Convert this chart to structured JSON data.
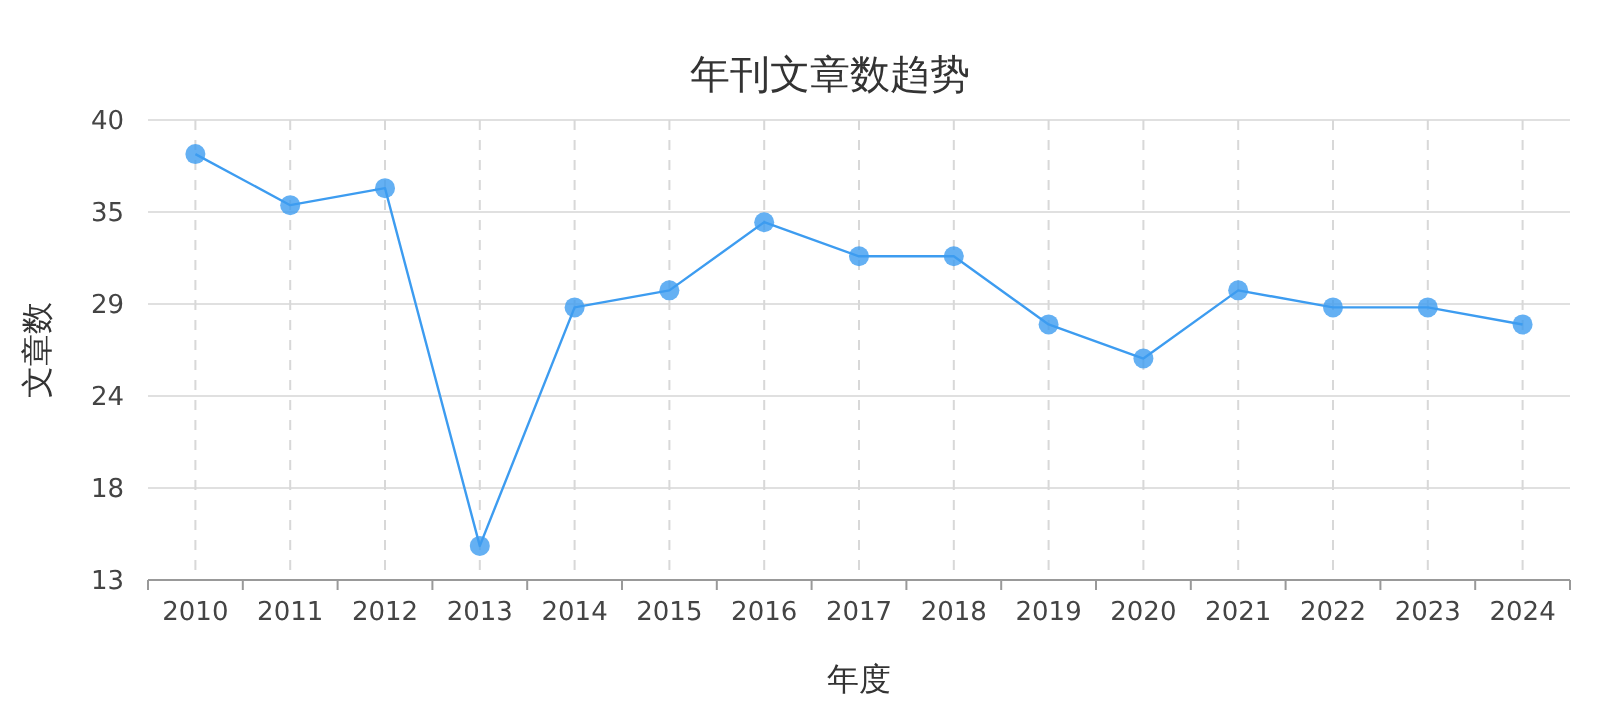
{
  "chart_data": {
    "type": "line",
    "title": "年刊文章数趋势",
    "xlabel": "年度",
    "ylabel": "文章数",
    "categories": [
      "2010",
      "2011",
      "2012",
      "2013",
      "2014",
      "2015",
      "2016",
      "2017",
      "2018",
      "2019",
      "2020",
      "2021",
      "2022",
      "2023",
      "2024"
    ],
    "series": [
      {
        "color": "#3d9cf0",
        "values": [
          38,
          35,
          36,
          15,
          29,
          30,
          34,
          32,
          32,
          28,
          26,
          30,
          29,
          29,
          28
        ]
      }
    ],
    "ylim": [
      13,
      40
    ],
    "yticks": [
      13,
      {
        "value": 18.4,
        "label": "18"
      },
      {
        "value": 23.8,
        "label": "24"
      },
      {
        "value": 29.2,
        "label": "29"
      },
      {
        "value": 34.6,
        "label": "35"
      },
      40
    ],
    "grid": true,
    "marker": "circle",
    "line_style": "solid"
  }
}
